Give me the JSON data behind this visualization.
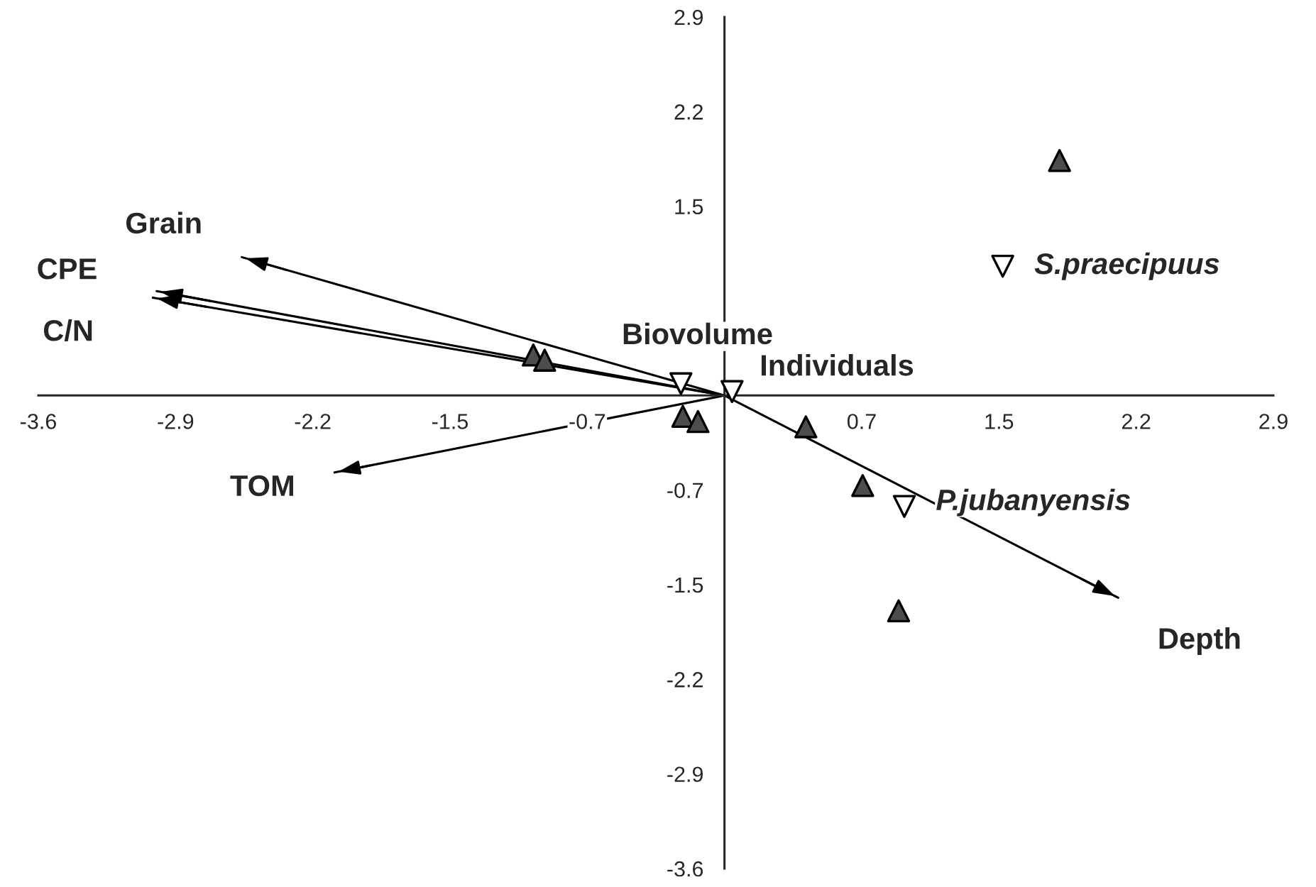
{
  "chart_data": {
    "type": "scatter",
    "series": [
      {
        "marker": "triangle",
        "color": "#4d4d4d",
        "x": [
          1.77,
          -1.01,
          -0.95,
          -0.22,
          -0.14,
          0.43,
          0.73,
          0.92
        ],
        "values": [
          1.8,
          0.31,
          0.27,
          -0.16,
          -0.2,
          -0.24,
          -0.69,
          -1.65
        ]
      },
      {
        "marker": "triangle-down",
        "color": "#ffffff",
        "x": [
          1.47,
          0.95,
          -0.23,
          0.04
        ],
        "values": [
          0.99,
          -0.85,
          0.09,
          0.03
        ]
      },
      {
        "type": "line",
        "name": "Grain",
        "color": "#000000",
        "x": [
          0,
          -2.55
        ],
        "values": [
          0,
          1.06
        ]
      },
      {
        "type": "line",
        "name": "CPE",
        "color": "#000000",
        "x": [
          0,
          -3.0
        ],
        "values": [
          0,
          0.8
        ]
      },
      {
        "type": "line",
        "name": "C/N",
        "color": "#000000",
        "x": [
          0,
          -3.02
        ],
        "values": [
          0,
          0.75
        ]
      },
      {
        "type": "line",
        "name": "TOM",
        "color": "#000000",
        "x": [
          0,
          -2.06
        ],
        "values": [
          0,
          -0.59
        ]
      },
      {
        "type": "line",
        "name": "Depth",
        "color": "#000000",
        "x": [
          0,
          2.08
        ],
        "values": [
          0,
          -1.55
        ]
      }
    ],
    "annotations": [
      {
        "text": "S.praecipuus",
        "x": 1.47,
        "y": 0.99
      },
      {
        "text": "P.jubanyensis",
        "x": 0.95,
        "y": -0.85
      },
      {
        "text": "Biovolume",
        "x": -0.23,
        "y": 0.09
      },
      {
        "text": "Individuals",
        "x": 0.04,
        "y": 0.03
      }
    ],
    "xlim": [
      -3.625,
      2.9
    ],
    "ylim": [
      -3.625,
      2.9
    ],
    "xticks": [
      {
        "value": -3.625,
        "label": "-3.6"
      },
      {
        "value": -2.9,
        "label": "-2.9"
      },
      {
        "value": -2.175,
        "label": "-2.2"
      },
      {
        "value": -1.45,
        "label": "-1.5"
      },
      {
        "value": -0.725,
        "label": "-0.7"
      },
      {
        "value": 0.725,
        "label": "0.7"
      },
      {
        "value": 1.45,
        "label": "1.5"
      },
      {
        "value": 2.175,
        "label": "2.2"
      },
      {
        "value": 2.9,
        "label": "2.9"
      }
    ],
    "yticks": [
      {
        "value": 2.9,
        "label": "2.9"
      },
      {
        "value": 2.175,
        "label": "2.2"
      },
      {
        "value": 1.45,
        "label": "1.5"
      },
      {
        "value": -0.725,
        "label": "-0.7"
      },
      {
        "value": -1.45,
        "label": "-1.5"
      },
      {
        "value": -2.175,
        "label": "-2.2"
      },
      {
        "value": -2.9,
        "label": "-2.9"
      },
      {
        "value": -3.625,
        "label": "-3.6"
      }
    ],
    "grid": false
  }
}
